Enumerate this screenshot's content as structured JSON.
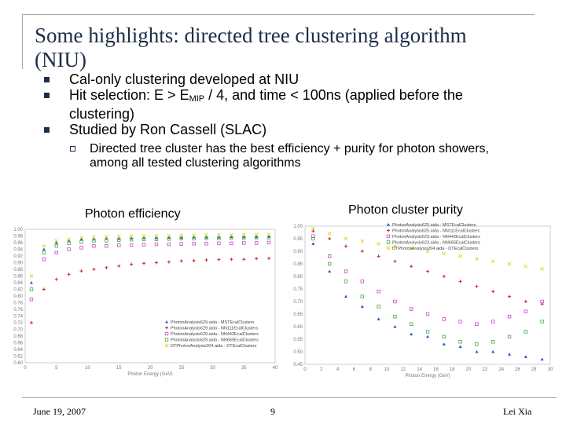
{
  "slide": {
    "title": "Some highlights: directed tree clustering algorithm (NIU)",
    "bullets": {
      "b1": "Cal-only clustering developed at NIU",
      "b2_pre": "Hit selection: E > E",
      "b2_sub": "MIP",
      "b2_post": " / 4, and time < 100ns  (applied before the clustering)",
      "b3": "Studied by Ron Cassell (SLAC)",
      "sub1": "Directed tree cluster has the best efficiency + purity for photon showers, among all tested clustering algorithms"
    },
    "captions": {
      "efficiency": "Photon efficiency",
      "purity": "Photon cluster purity"
    },
    "footer": {
      "date": "June 19, 2007",
      "page": "9",
      "author": "Lei Xia"
    }
  },
  "chart_data": [
    {
      "type": "scatter",
      "title": "Photon efficiency",
      "xlabel": "Photon Energy (GeV)",
      "ylabel": "",
      "xlim": [
        0,
        40
      ],
      "ylim": [
        0.6,
        1.0
      ],
      "xticks": [
        "0",
        "5",
        "10",
        "15",
        "20",
        "25",
        "30",
        "35",
        "40"
      ],
      "yticks": [
        "0.60",
        "0.62",
        "0.64",
        "0.66",
        "0.68",
        "0.70",
        "0.72",
        "0.74",
        "0.76",
        "0.78",
        "0.80",
        "0.82",
        "0.84",
        "0.86",
        "0.88",
        "0.90",
        "0.92",
        "0.94",
        "0.96",
        "0.98",
        "1.00"
      ],
      "legend": [
        "PhotonAnalysis629.aida - MSTEcalClusters",
        "PhotonAnalysis629.aida - NN111EcalClusters",
        "PhotonAnalysis629.aida - NN442EcalClusters",
        "PhotonAnalysis629.aida - NN665EcalClusters",
        "DTPhotonAnalysis204.aida - DTEcalClusters"
      ],
      "series": [
        {
          "name": "MSTEcalClusters",
          "color": "#3355cc",
          "values": [
            0.84,
            0.94,
            0.96,
            0.965,
            0.97,
            0.97,
            0.972,
            0.972,
            0.973,
            0.974,
            0.974,
            0.975,
            0.975,
            0.976,
            0.976,
            0.976,
            0.977,
            0.977,
            0.977,
            0.978
          ]
        },
        {
          "name": "NN111EcalClusters",
          "color": "#cc2222",
          "values": [
            0.72,
            0.82,
            0.85,
            0.865,
            0.875,
            0.88,
            0.885,
            0.89,
            0.895,
            0.898,
            0.9,
            0.902,
            0.905,
            0.906,
            0.908,
            0.909,
            0.91,
            0.91,
            0.912,
            0.913
          ]
        },
        {
          "name": "NN442EcalClusters",
          "color": "#cc44cc",
          "values": [
            0.79,
            0.91,
            0.93,
            0.94,
            0.945,
            0.95,
            0.95,
            0.952,
            0.953,
            0.954,
            0.955,
            0.955,
            0.956,
            0.957,
            0.957,
            0.958,
            0.958,
            0.959,
            0.959,
            0.96
          ]
        },
        {
          "name": "NN665EcalClusters",
          "color": "#44aa44",
          "values": [
            0.82,
            0.93,
            0.95,
            0.958,
            0.962,
            0.965,
            0.966,
            0.968,
            0.969,
            0.97,
            0.97,
            0.971,
            0.972,
            0.972,
            0.973,
            0.973,
            0.974,
            0.974,
            0.975,
            0.975
          ]
        },
        {
          "name": "DTEcalClusters",
          "color": "#dddd22",
          "values": [
            0.86,
            0.95,
            0.965,
            0.97,
            0.975,
            0.977,
            0.978,
            0.979,
            0.98,
            0.98,
            0.981,
            0.981,
            0.982,
            0.982,
            0.983,
            0.983,
            0.983,
            0.984,
            0.984,
            0.984
          ]
        }
      ]
    },
    {
      "type": "scatter",
      "title": "Photon cluster purity",
      "xlabel": "Photon Energy (GeV)",
      "ylabel": "",
      "xlim": [
        0,
        30
      ],
      "ylim": [
        0.45,
        1.0
      ],
      "xticks": [
        "0",
        "2",
        "4",
        "6",
        "8",
        "10",
        "12",
        "14",
        "16",
        "18",
        "20",
        "22",
        "24",
        "26",
        "28",
        "30"
      ],
      "yticks": [
        "0.45",
        "0.50",
        "0.55",
        "0.60",
        "0.65",
        "0.70",
        "0.75",
        "0.80",
        "0.85",
        "0.90",
        "0.95",
        "1.00"
      ],
      "legend": [
        "PhotonAnalysis625.aida - MSTEcalClusters",
        "PhotonAnalysis625.aida - NN111EcalClusters",
        "PhotonAnalysis623.aida - NN442EcalClusters",
        "PhotonAnalysis623.aida - NN665EcalClusters",
        "DTPhotonAnalysis204.aida - DTEcalClusters"
      ],
      "series": [
        {
          "name": "MSTEcalClusters",
          "color": "#3344cc",
          "values": [
            0.93,
            0.82,
            0.72,
            0.68,
            0.63,
            0.6,
            0.57,
            0.56,
            0.53,
            0.52,
            0.5,
            0.5,
            0.49,
            0.48,
            0.47
          ]
        },
        {
          "name": "NN111EcalClusters",
          "color": "#cc2222",
          "values": [
            0.98,
            0.95,
            0.92,
            0.9,
            0.88,
            0.86,
            0.84,
            0.82,
            0.8,
            0.78,
            0.76,
            0.74,
            0.72,
            0.7,
            0.69
          ]
        },
        {
          "name": "NN442EcalClusters",
          "color": "#cc44cc",
          "values": [
            0.96,
            0.88,
            0.82,
            0.78,
            0.74,
            0.7,
            0.67,
            0.65,
            0.63,
            0.62,
            0.61,
            0.62,
            0.64,
            0.66,
            0.7
          ]
        },
        {
          "name": "NN665EcalClusters",
          "color": "#44aa44",
          "values": [
            0.95,
            0.85,
            0.78,
            0.72,
            0.68,
            0.64,
            0.61,
            0.58,
            0.56,
            0.54,
            0.53,
            0.54,
            0.56,
            0.58,
            0.62
          ]
        },
        {
          "name": "DTEcalClusters",
          "color": "#dddd22",
          "values": [
            0.99,
            0.97,
            0.95,
            0.94,
            0.93,
            0.92,
            0.91,
            0.9,
            0.89,
            0.88,
            0.87,
            0.86,
            0.85,
            0.84,
            0.83
          ]
        }
      ]
    }
  ]
}
